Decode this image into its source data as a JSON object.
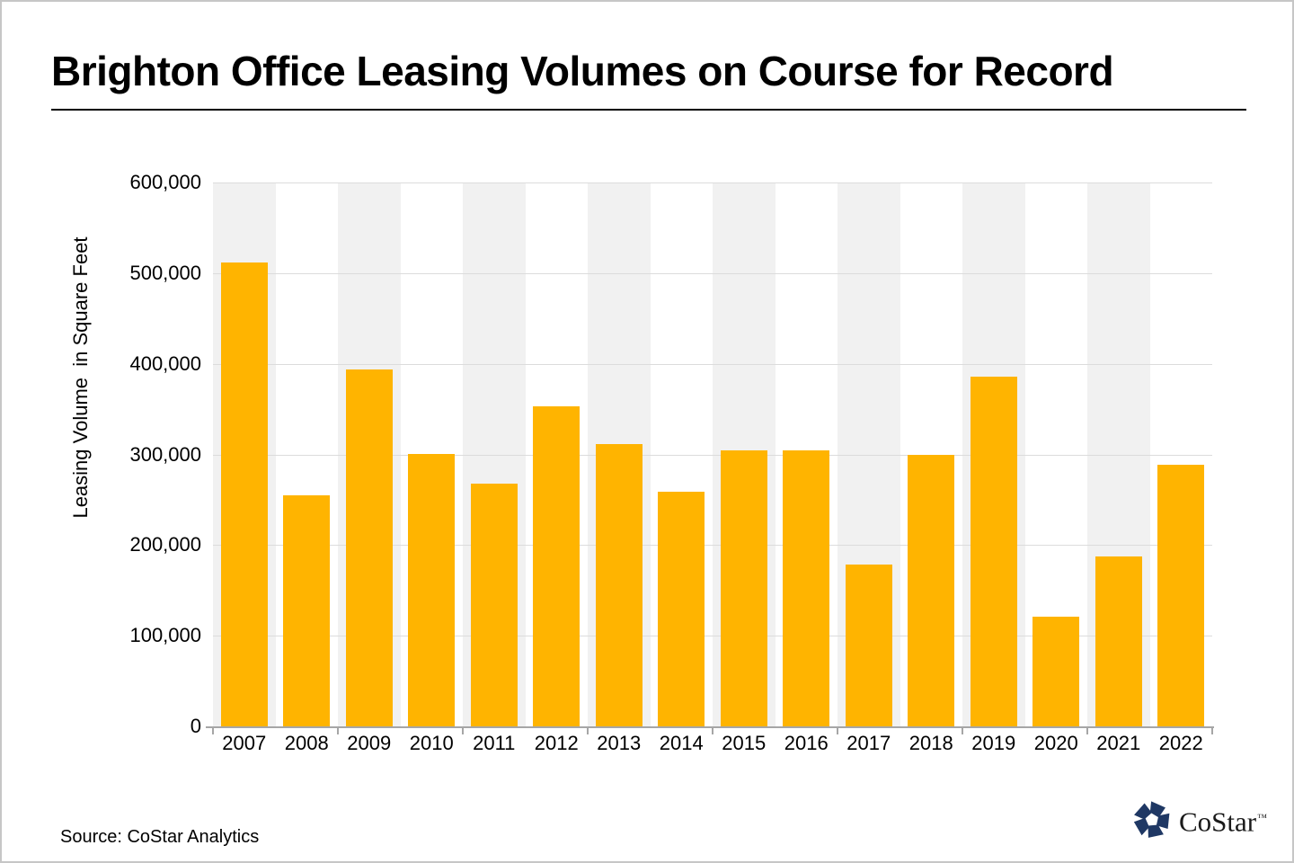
{
  "page": {
    "title": "Brighton Office Leasing Volumes on Course for Record",
    "source_note": "Source: CoStar Analytics"
  },
  "logo": {
    "text": "CoStar",
    "trademark": "™",
    "icon": "costar-pinwheel-icon",
    "icon_color": "#1f3864"
  },
  "chart_data": {
    "type": "bar",
    "title": "Brighton Office Leasing Volumes on Course for Record",
    "categories": [
      "2007",
      "2008",
      "2009",
      "2010",
      "2011",
      "2012",
      "2013",
      "2014",
      "2015",
      "2016",
      "2017",
      "2018",
      "2019",
      "2020",
      "2021",
      "2022"
    ],
    "values": [
      512000,
      255000,
      394000,
      301000,
      268000,
      353000,
      311000,
      259000,
      304000,
      304000,
      179000,
      300000,
      386000,
      121000,
      187000,
      289000
    ],
    "xlabel": "",
    "ylabel": "Leasing Volume  in Square Feet",
    "ylim": [
      0,
      600000
    ],
    "yticks": [
      0,
      100000,
      200000,
      300000,
      400000,
      500000,
      600000
    ],
    "ytick_labels": [
      "0",
      "100,000",
      "200,000",
      "300,000",
      "400,000",
      "500,000",
      "600,000"
    ],
    "grid": true,
    "legend": false,
    "bar_color": "#ffb400",
    "band_color": "#f1f1f1",
    "gridline_color": "#dcdcdc",
    "axis_color": "#a6a6a6",
    "x_tick_every": 2
  }
}
